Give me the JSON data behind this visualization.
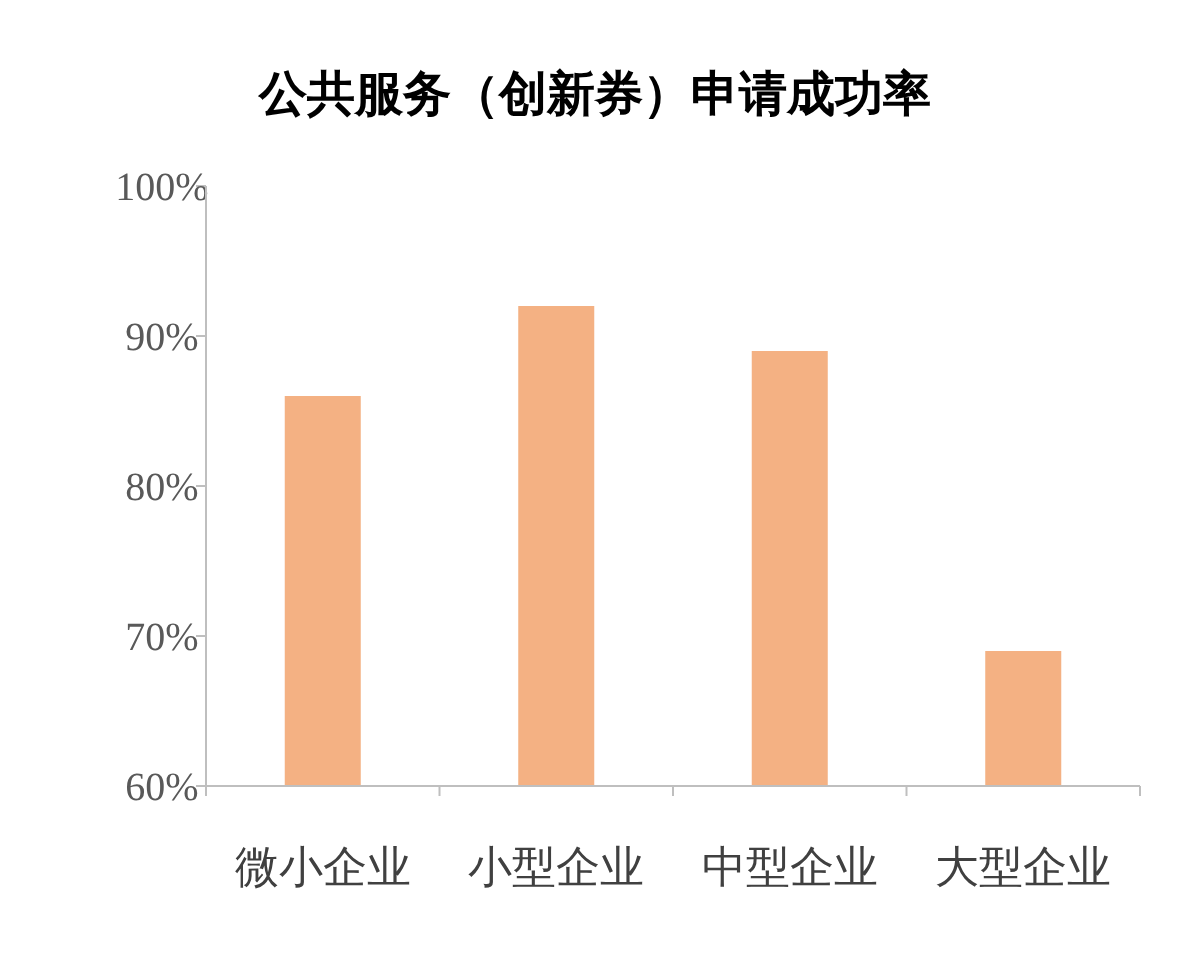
{
  "chart_data": {
    "type": "bar",
    "title": "公共服务（创新券）申请成功率",
    "categories": [
      "微小企业",
      "小型企业",
      "中型企业",
      "大型企业"
    ],
    "values": [
      86,
      92,
      89,
      69
    ],
    "color": "#f4b183",
    "ylim": [
      60,
      100
    ],
    "yticks": [
      {
        "value": 60,
        "label": "60%"
      },
      {
        "value": 70,
        "label": "70%"
      },
      {
        "value": 80,
        "label": "80%"
      },
      {
        "value": 90,
        "label": "90%"
      },
      {
        "value": 100,
        "label": "100%"
      }
    ],
    "grid": false
  }
}
